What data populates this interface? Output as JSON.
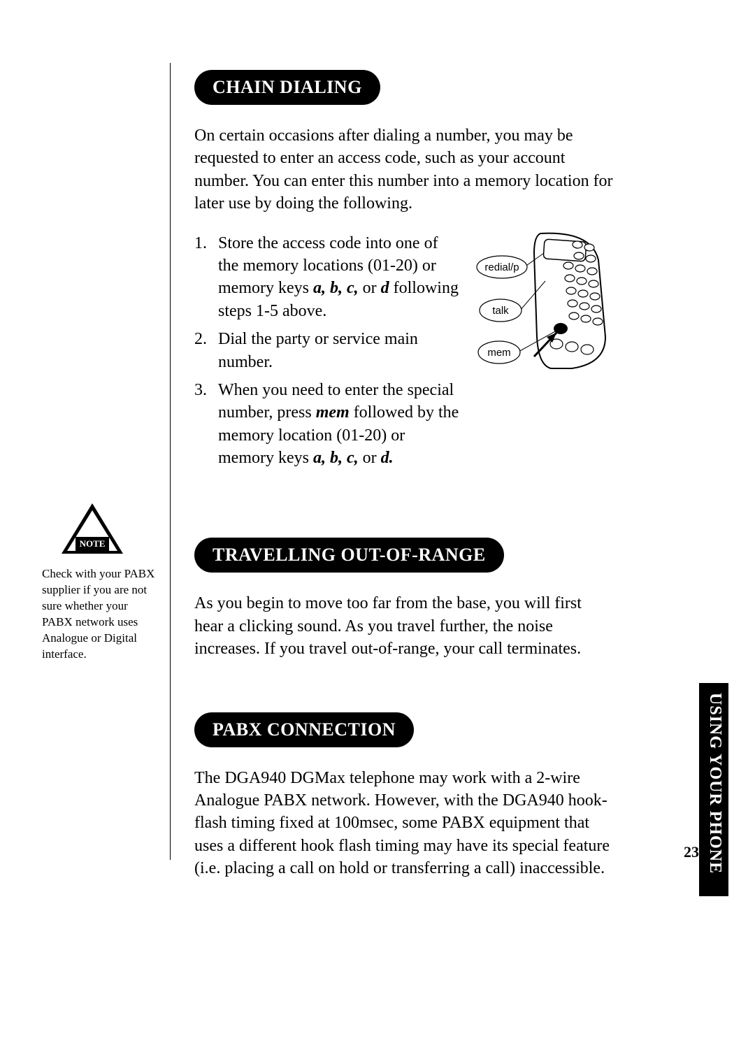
{
  "page": {
    "number": "23",
    "side_tab": "USING YOUR PHONE"
  },
  "colors": {
    "heading_bg": "#000000",
    "heading_fg": "#ffffff",
    "body": "#000000",
    "background": "#ffffff"
  },
  "typography": {
    "heading_fontsize": 26,
    "body_fontsize": 24,
    "note_fontsize": 17,
    "sidetab_fontsize": 24
  },
  "sections": {
    "chain_dialing": {
      "title": "CHAIN DIALING",
      "intro": "On certain occasions after dialing a number, you may be requested to enter an access code, such as your account number. You can enter this number into a memory location for later use by doing the following.",
      "steps": [
        {
          "num": "1.",
          "text_parts": [
            "Store the access code into one of the memory locations (01-20) or memory keys ",
            {
              "bold_ital": "a, b, c,"
            },
            " or ",
            {
              "bold_ital": "d"
            },
            " following steps 1-5 above."
          ]
        },
        {
          "num": "2.",
          "text_parts": [
            "Dial the party or service main number."
          ]
        },
        {
          "num": "3.",
          "text_parts": [
            "When you need to enter the special number, press ",
            {
              "bold_ital": "mem"
            },
            " followed by the memory location (01-20) or memory keys ",
            {
              "bold_ital": "a, b, c,"
            },
            " or ",
            {
              "bold_ital": "d."
            }
          ]
        }
      ],
      "illustration": {
        "callouts": [
          "redial/p",
          "talk",
          "mem"
        ]
      }
    },
    "out_of_range": {
      "title": "TRAVELLING OUT-OF-RANGE",
      "body": "As you begin to move too far from the base, you will first hear a clicking sound. As you travel further, the noise increases. If you travel out-of-range, your call terminates."
    },
    "pabx": {
      "title": "PABX CONNECTION",
      "body": "The DGA940 DGMax telephone may work with a 2-wire Analogue PABX network. However, with the DGA940 hook-flash timing fixed at 100msec, some PABX equipment that uses a different hook flash timing may have its special feature (i.e. placing a call on hold or transferring a call) inaccessible."
    }
  },
  "sidebar_note": {
    "label": "NOTE",
    "text": "Check with your PABX supplier if you are not sure whether your PABX network uses Analogue or Digital interface."
  }
}
